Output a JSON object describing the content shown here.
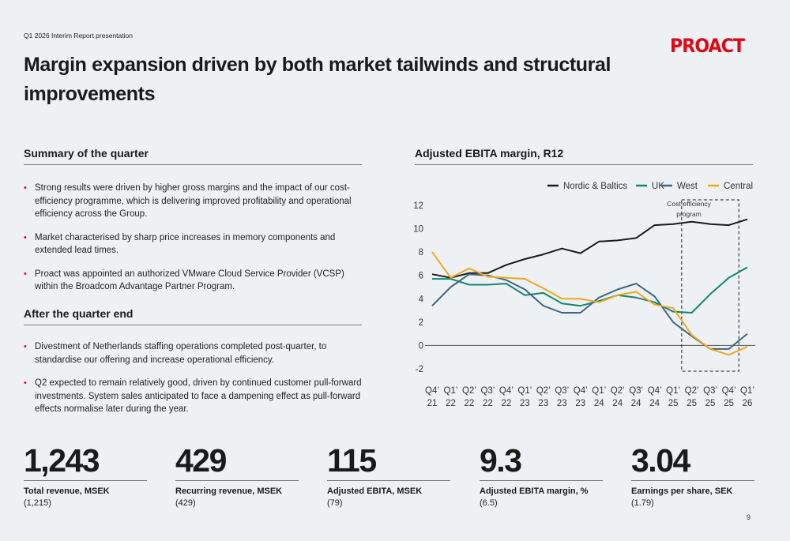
{
  "header": {
    "context": "Q1 2026 Interim Report presentation",
    "logo": "PROACT",
    "title": "Margin expansion driven by both market tailwinds and structural improvements",
    "page_number": "9"
  },
  "summary": {
    "heading": "Summary of the quarter",
    "bullets": [
      "Strong results were driven by higher gross margins and the impact of our cost-efficiency programme, which is delivering improved profitability and operational efficiency across the Group.",
      "Market characterised by sharp price increases in memory components and extended lead times.",
      "Proact was appointed an authorized VMware Cloud Service Provider (VCSP) within the Broadcom Advantage Partner Program."
    ]
  },
  "after_quarter": {
    "heading": "After the quarter end",
    "bullets": [
      "Divestment of Netherlands staffing operations completed post-quarter, to standardise our offering and increase operational efficiency.",
      "Q2 expected to remain relatively good, driven by continued customer pull-forward investments. System sales anticipated to face a dampening effect as pull-forward effects normalise later during the year."
    ]
  },
  "chart_heading": "Adjusted EBITA margin, R12",
  "chart_data": {
    "type": "line",
    "categories": [
      [
        "Q4’",
        "21"
      ],
      [
        "Q1’",
        "22"
      ],
      [
        "Q2’",
        "22"
      ],
      [
        "Q3’",
        "22"
      ],
      [
        "Q4’",
        "22"
      ],
      [
        "Q1’",
        "23"
      ],
      [
        "Q2’",
        "23"
      ],
      [
        "Q3’",
        "23"
      ],
      [
        "Q4’",
        "23"
      ],
      [
        "Q1’",
        "24"
      ],
      [
        "Q2’",
        "24"
      ],
      [
        "Q3’",
        "24"
      ],
      [
        "Q4’",
        "24"
      ],
      [
        "Q1’",
        "25"
      ],
      [
        "Q2’",
        "25"
      ],
      [
        "Q3’",
        "25"
      ],
      [
        "Q4’",
        "25"
      ],
      [
        "Q1’",
        "26"
      ]
    ],
    "ylim": [
      -2,
      12
    ],
    "yticks": [
      "12",
      "10",
      "8",
      "6",
      "4",
      "2",
      "0",
      "-2"
    ],
    "series": [
      {
        "name": "Nordic & Baltics",
        "color": "#1a1a1a",
        "values": [
          6.1,
          5.8,
          6.2,
          6.2,
          6.9,
          7.4,
          7.8,
          8.3,
          7.9,
          8.9,
          9.0,
          9.2,
          10.3,
          10.4,
          10.6,
          10.4,
          10.3,
          10.8
        ]
      },
      {
        "name": "UK",
        "color": "#128574",
        "values": [
          5.7,
          5.7,
          5.2,
          5.2,
          5.3,
          4.3,
          4.5,
          3.6,
          3.4,
          3.8,
          4.3,
          4.1,
          3.7,
          2.9,
          2.8,
          4.4,
          5.8,
          6.7
        ]
      },
      {
        "name": "West",
        "color": "#3c6685",
        "values": [
          3.4,
          5.0,
          6.1,
          6.0,
          5.6,
          4.8,
          3.4,
          2.8,
          2.8,
          4.1,
          4.8,
          5.3,
          4.2,
          2.0,
          0.8,
          -0.3,
          -0.3,
          1.0
        ]
      },
      {
        "name": "Central",
        "color": "#f0a81c",
        "values": [
          8.0,
          5.8,
          6.6,
          5.9,
          5.8,
          5.7,
          4.9,
          4.0,
          4.0,
          3.7,
          4.3,
          4.6,
          3.5,
          3.2,
          0.9,
          -0.3,
          -0.8,
          -0.1
        ]
      }
    ],
    "annotation": {
      "text_line1": "Cost-efficiency",
      "text_line2": "program",
      "from_index": 14,
      "to_index": 16
    },
    "legend_position": "top-right",
    "grid": false
  },
  "kpis": [
    {
      "value": "1,243",
      "label": "Total revenue, MSEK",
      "previous": "(1,215)"
    },
    {
      "value": "429",
      "label": "Recurring revenue, MSEK",
      "previous": "(429)"
    },
    {
      "value": "115",
      "label": "Adjusted EBITA, MSEK",
      "previous": "(79)"
    },
    {
      "value": "9.3",
      "label": "Adjusted EBITA margin, %",
      "previous": "(6.5)"
    },
    {
      "value": "3.04",
      "label": "Earnings per share, SEK",
      "previous": "(1.79)"
    }
  ]
}
